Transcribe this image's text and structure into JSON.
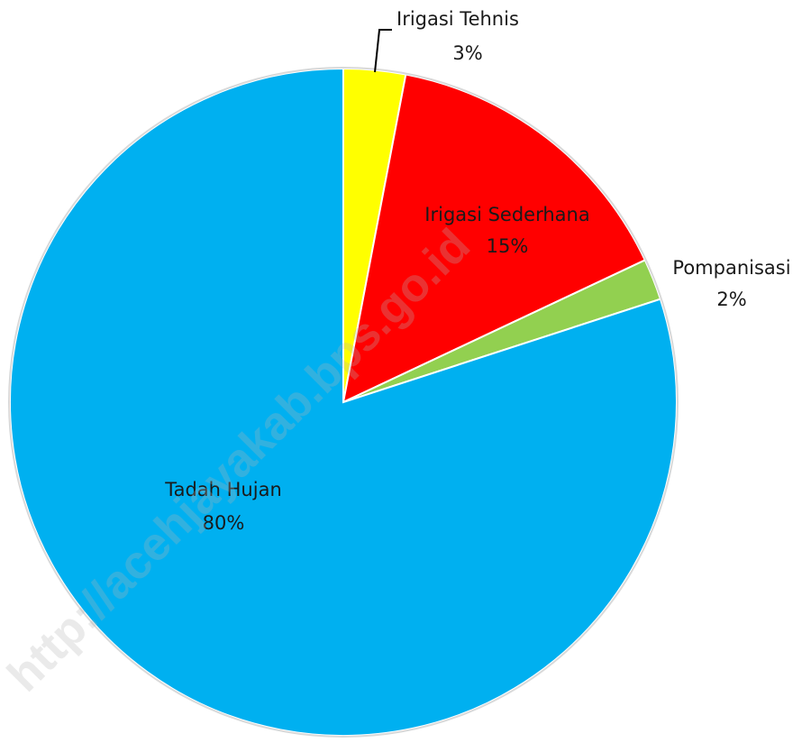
{
  "watermark": "http://acehjayakab.bps.go.id",
  "chart_data": {
    "type": "pie",
    "title": "",
    "start_angle_deg": 0,
    "direction": "clockwise",
    "slices": [
      {
        "label": "Irigasi Tehnis",
        "value": 3,
        "value_label": "3%",
        "color": "#FFFF00"
      },
      {
        "label": "Irigasi Sederhana",
        "value": 15,
        "value_label": "15%",
        "color": "#FF0000"
      },
      {
        "label": "Pompanisasi",
        "value": 2,
        "value_label": "2%",
        "color": "#92D050"
      },
      {
        "label": "Tadah Hujan",
        "value": 80,
        "value_label": "80%",
        "color": "#00B0F0"
      }
    ]
  }
}
